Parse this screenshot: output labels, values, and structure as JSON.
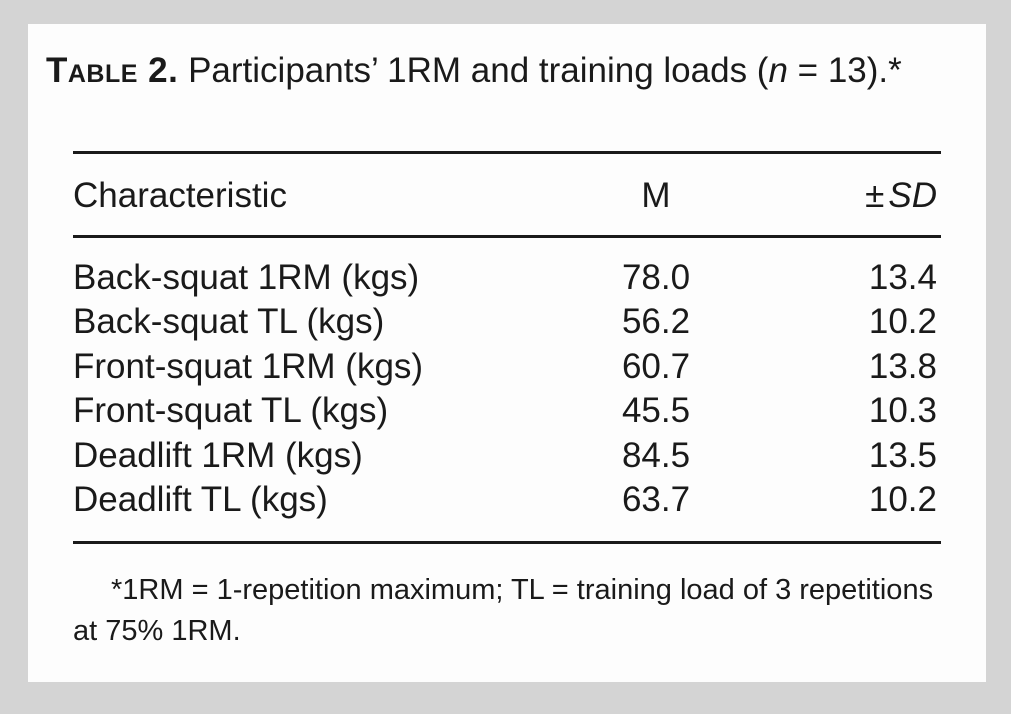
{
  "caption": {
    "label": "Table 2.",
    "text_part1": " Participants’ 1RM and training loads (",
    "n_symbol": "n",
    "text_part2": " = 13).*"
  },
  "table": {
    "headers": {
      "characteristic": "Characteristic",
      "mean": "M",
      "sd_symbol": "±",
      "sd_label": "SD"
    },
    "rows": [
      {
        "characteristic": "Back-squat 1RM (kgs)",
        "mean": "78.0",
        "sd": "13.4"
      },
      {
        "characteristic": "Back-squat TL (kgs)",
        "mean": "56.2",
        "sd": "10.2"
      },
      {
        "characteristic": "Front-squat 1RM (kgs)",
        "mean": "60.7",
        "sd": "13.8"
      },
      {
        "characteristic": "Front-squat TL (kgs)",
        "mean": "45.5",
        "sd": "10.3"
      },
      {
        "characteristic": "Deadlift 1RM (kgs)",
        "mean": "84.5",
        "sd": "13.5"
      },
      {
        "characteristic": "Deadlift TL (kgs)",
        "mean": "63.7",
        "sd": "10.2"
      }
    ]
  },
  "footnote": "*1RM = 1-repetition maximum; TL = training load of 3 repetitions at 75% 1RM."
}
